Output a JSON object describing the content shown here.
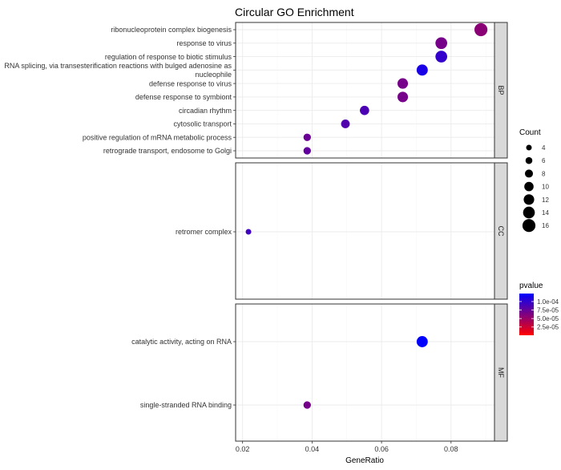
{
  "chart_data": {
    "type": "scatter",
    "title": "Circular GO  Enrichment",
    "xlabel": "GeneRatio",
    "ylabel": "",
    "xlim": [
      0.018,
      0.0925
    ],
    "xticks": [
      {
        "value": 0.02,
        "label": "0.02"
      },
      {
        "value": 0.04,
        "label": "0.04"
      },
      {
        "value": 0.06,
        "label": "0.06"
      },
      {
        "value": 0.08,
        "label": "0.08"
      }
    ],
    "grid": true,
    "facets": [
      {
        "name": "BP",
        "terms": [
          {
            "label": [
              "ribonucleoprotein complex biogenesis"
            ],
            "gene_ratio": 0.0886,
            "count": 16,
            "pvalue": 8e-06
          },
          {
            "label": [
              "response to virus"
            ],
            "gene_ratio": 0.0772,
            "count": 14,
            "pvalue": 1.2e-05
          },
          {
            "label": [
              "regulation of response to biotic stimulus"
            ],
            "gene_ratio": 0.0772,
            "count": 14,
            "pvalue": 4.5e-05
          },
          {
            "label": [
              "RNA splicing, via transesterification reactions with bulged adenosine as",
              "nucleophile"
            ],
            "gene_ratio": 0.0717,
            "count": 13,
            "pvalue": 7.5e-05
          },
          {
            "label": [
              "defense response to virus"
            ],
            "gene_ratio": 0.0661,
            "count": 12,
            "pvalue": 1.2e-05
          },
          {
            "label": [
              "defense response to symbiont"
            ],
            "gene_ratio": 0.0661,
            "count": 12,
            "pvalue": 1.2e-05
          },
          {
            "label": [
              "circadian rhythm"
            ],
            "gene_ratio": 0.0551,
            "count": 10,
            "pvalue": 2.8e-05
          },
          {
            "label": [
              "cytosolic transport"
            ],
            "gene_ratio": 0.0496,
            "count": 9,
            "pvalue": 2.5e-05
          },
          {
            "label": [
              "positive regulation of mRNA metabolic process"
            ],
            "gene_ratio": 0.0386,
            "count": 7,
            "pvalue": 1.5e-05
          },
          {
            "label": [
              "retrograde transport, endosome to Golgi"
            ],
            "gene_ratio": 0.0386,
            "count": 7,
            "pvalue": 1.8e-05
          }
        ]
      },
      {
        "name": "CC",
        "terms": [
          {
            "label": [
              "retromer complex"
            ],
            "gene_ratio": 0.0217,
            "count": 4,
            "pvalue": 3.5e-05
          }
        ]
      },
      {
        "name": "MF",
        "terms": [
          {
            "label": [
              "catalytic activity, acting on RNA"
            ],
            "gene_ratio": 0.0717,
            "count": 13,
            "pvalue": 0.000123
          },
          {
            "label": [
              "single-stranded RNA binding"
            ],
            "gene_ratio": 0.0386,
            "count": 7,
            "pvalue": 1.2e-05
          }
        ]
      }
    ],
    "size_legend": {
      "title": "Count",
      "breaks": [
        4,
        6,
        8,
        10,
        12,
        14,
        16
      ]
    },
    "color_legend": {
      "title": "pvalue",
      "range": [
        8e-07,
        0.0001235
      ],
      "low_color": "#ff0000",
      "high_color": "#0000ff",
      "breaks": [
        {
          "value": 0.0001,
          "label": "1.0e-04"
        },
        {
          "value": 7.5e-05,
          "label": "7.5e-05"
        },
        {
          "value": 5e-05,
          "label": "5.0e-05"
        },
        {
          "value": 2.5e-05,
          "label": "2.5e-05"
        }
      ]
    },
    "legend_position": "right"
  }
}
